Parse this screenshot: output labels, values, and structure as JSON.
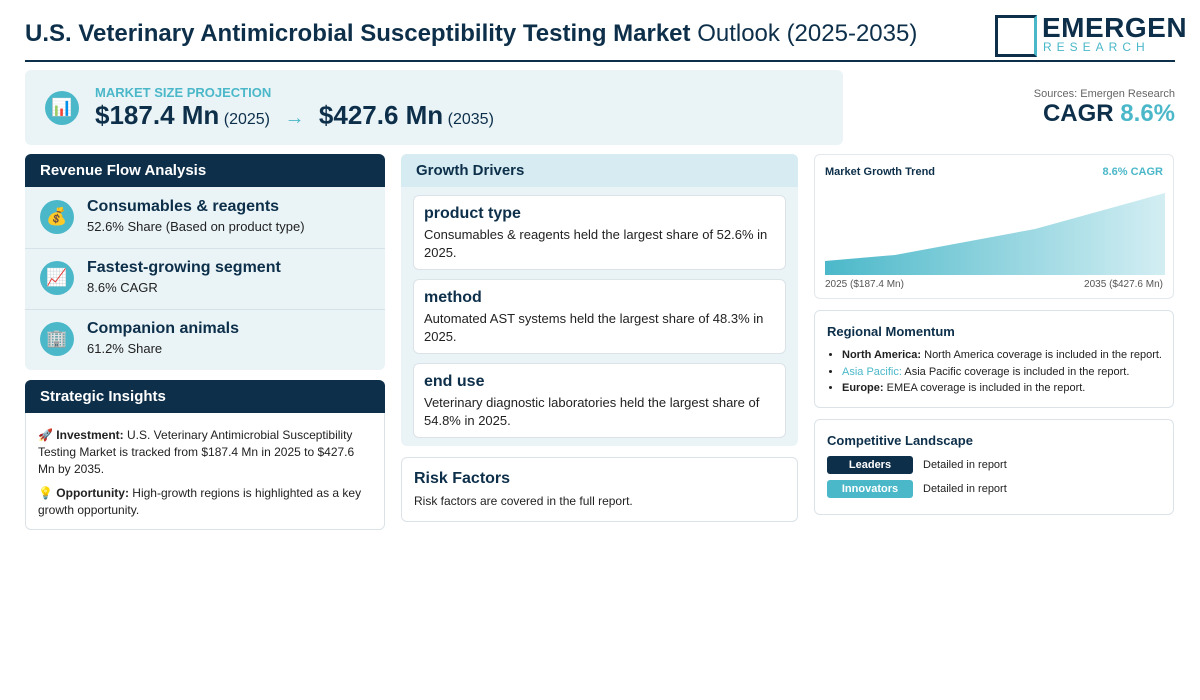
{
  "header": {
    "title_bold": "U.S. Veterinary Antimicrobial Susceptibility Testing Market",
    "title_rest": "Outlook (2025-2035)",
    "logo_top": "EMERGEN",
    "logo_bottom": "RESEARCH"
  },
  "projection": {
    "icon": "📊",
    "label": "MARKET SIZE PROJECTION",
    "start_value": "$187.4 Mn",
    "start_year": "(2025)",
    "arrow": "→",
    "end_value": "$427.6 Mn",
    "end_year": "(2035)"
  },
  "summary": {
    "source": "Sources: Emergen Research",
    "cagr_label": "CAGR",
    "cagr_value": "8.6%"
  },
  "revenue_flow": {
    "title": "Revenue Flow Analysis",
    "items": [
      {
        "icon": "💰",
        "title": "Consumables & reagents",
        "text": "52.6% Share (Based on product type)"
      },
      {
        "icon": "📈",
        "title": "Fastest-growing segment",
        "text": "8.6% CAGR"
      },
      {
        "icon": "🏢",
        "title": "Companion animals",
        "text": "61.2% Share"
      }
    ]
  },
  "strategic_insights": {
    "title": "Strategic Insights",
    "items": [
      {
        "icon": "🚀",
        "label": "Investment:",
        "text": "U.S. Veterinary Antimicrobial Susceptibility Testing Market is tracked from $187.4 Mn in 2025 to $427.6 Mn by 2035."
      },
      {
        "icon": "💡",
        "label": "Opportunity:",
        "text": "High-growth regions is highlighted as a key growth opportunity."
      }
    ]
  },
  "growth_drivers": {
    "title": "Growth Drivers",
    "items": [
      {
        "title": "product type",
        "text": "Consumables & reagents held the largest share of 52.6% in 2025."
      },
      {
        "title": "method",
        "text": "Automated AST systems held the largest share of 48.3% in 2025."
      },
      {
        "title": "end use",
        "text": "Veterinary diagnostic laboratories held the largest share of 54.8% in 2025."
      }
    ]
  },
  "risk_factors": {
    "title": "Risk Factors",
    "text": "Risk factors are covered in the full report."
  },
  "trend": {
    "title": "Market Growth Trend",
    "badge": "8.6% CAGR",
    "start_label": "2025 ($187.4 Mn)",
    "end_label": "2035 ($427.6 Mn)"
  },
  "regional": {
    "title": "Regional Momentum",
    "items": [
      {
        "region": "North America:",
        "text": "North America coverage is included in the report."
      },
      {
        "region": "Asia Pacific:",
        "text": "Asia Pacific coverage is included in the report."
      },
      {
        "region": "Europe:",
        "text": "EMEA coverage is included in the report."
      }
    ]
  },
  "competitive": {
    "title": "Competitive Landscape",
    "items": [
      {
        "tag": "Leaders",
        "text": "Detailed in report"
      },
      {
        "tag": "Innovators",
        "text": "Detailed in report"
      }
    ]
  }
}
